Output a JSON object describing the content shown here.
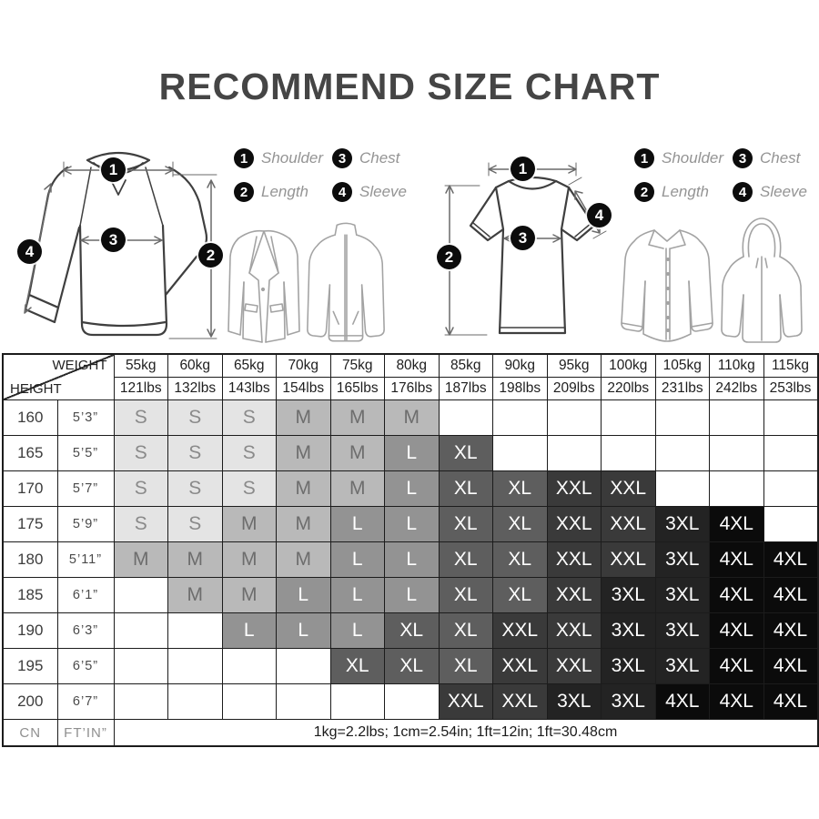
{
  "title": "RECOMMEND SIZE CHART",
  "legend": {
    "items": [
      {
        "num": "1",
        "label": "Shoulder"
      },
      {
        "num": "2",
        "label": "Length"
      },
      {
        "num": "3",
        "label": "Chest"
      },
      {
        "num": "4",
        "label": "Sleeve"
      }
    ]
  },
  "chart_data": {
    "type": "table",
    "title": "RECOMMEND SIZE CHART",
    "corner_top": "WEIGHT",
    "corner_bottom": "HEIGHT",
    "columns": [
      {
        "kg": "55kg",
        "lbs": "121lbs"
      },
      {
        "kg": "60kg",
        "lbs": "132lbs"
      },
      {
        "kg": "65kg",
        "lbs": "143lbs"
      },
      {
        "kg": "70kg",
        "lbs": "154lbs"
      },
      {
        "kg": "75kg",
        "lbs": "165lbs"
      },
      {
        "kg": "80kg",
        "lbs": "176lbs"
      },
      {
        "kg": "85kg",
        "lbs": "187lbs"
      },
      {
        "kg": "90kg",
        "lbs": "198lbs"
      },
      {
        "kg": "95kg",
        "lbs": "209lbs"
      },
      {
        "kg": "100kg",
        "lbs": "220lbs"
      },
      {
        "kg": "105kg",
        "lbs": "231lbs"
      },
      {
        "kg": "110kg",
        "lbs": "242lbs"
      },
      {
        "kg": "115kg",
        "lbs": "253lbs"
      }
    ],
    "rows": [
      {
        "height_cm": "160",
        "height_ftin": "5’3”",
        "sizes": [
          "S",
          "S",
          "S",
          "M",
          "M",
          "M",
          "",
          "",
          "",
          "",
          "",
          "",
          ""
        ]
      },
      {
        "height_cm": "165",
        "height_ftin": "5’5”",
        "sizes": [
          "S",
          "S",
          "S",
          "M",
          "M",
          "L",
          "XL",
          "",
          "",
          "",
          "",
          "",
          ""
        ]
      },
      {
        "height_cm": "170",
        "height_ftin": "5’7”",
        "sizes": [
          "S",
          "S",
          "S",
          "M",
          "M",
          "L",
          "XL",
          "XL",
          "XXL",
          "XXL",
          "",
          "",
          ""
        ]
      },
      {
        "height_cm": "175",
        "height_ftin": "5’9”",
        "sizes": [
          "S",
          "S",
          "M",
          "M",
          "L",
          "L",
          "XL",
          "XL",
          "XXL",
          "XXL",
          "3XL",
          "4XL",
          ""
        ]
      },
      {
        "height_cm": "180",
        "height_ftin": "5’11”",
        "sizes": [
          "M",
          "M",
          "M",
          "M",
          "L",
          "L",
          "XL",
          "XL",
          "XXL",
          "XXL",
          "3XL",
          "4XL",
          "4XL"
        ]
      },
      {
        "height_cm": "185",
        "height_ftin": "6’1”",
        "sizes": [
          "",
          "M",
          "M",
          "L",
          "L",
          "L",
          "XL",
          "XL",
          "XXL",
          "3XL",
          "3XL",
          "4XL",
          "4XL"
        ]
      },
      {
        "height_cm": "190",
        "height_ftin": "6’3”",
        "sizes": [
          "",
          "",
          "L",
          "L",
          "L",
          "XL",
          "XL",
          "XXL",
          "XXL",
          "3XL",
          "3XL",
          "4XL",
          "4XL"
        ]
      },
      {
        "height_cm": "195",
        "height_ftin": "6’5”",
        "sizes": [
          "",
          "",
          "",
          "",
          "XL",
          "XL",
          "XL",
          "XXL",
          "XXL",
          "3XL",
          "3XL",
          "4XL",
          "4XL"
        ]
      },
      {
        "height_cm": "200",
        "height_ftin": "6’7”",
        "sizes": [
          "",
          "",
          "",
          "",
          "",
          "",
          "XXL",
          "XXL",
          "3XL",
          "3XL",
          "4XL",
          "4XL",
          "4XL"
        ]
      }
    ],
    "footer_height_unit_1": "CN",
    "footer_height_unit_2": "FT’IN”",
    "conversion_note": "1kg=2.2lbs; 1cm=2.54in; 1ft=12in; 1ft=30.48cm",
    "size_colors": {
      "S": {
        "bg": "#e4e4e4",
        "fg": "#8a8a8a"
      },
      "M": {
        "bg": "#b9b9b9",
        "fg": "#6d6d6d"
      },
      "L": {
        "bg": "#939393",
        "fg": "#ffffff"
      },
      "XL": {
        "bg": "#5e5e5e",
        "fg": "#ffffff"
      },
      "XXL": {
        "bg": "#3a3a3a",
        "fg": "#ffffff"
      },
      "3XL": {
        "bg": "#232323",
        "fg": "#ffffff"
      },
      "4XL": {
        "bg": "#0b0b0b",
        "fg": "#ffffff"
      }
    }
  }
}
